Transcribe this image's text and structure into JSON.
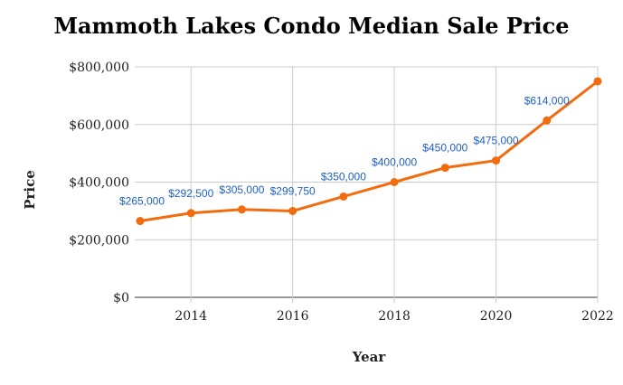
{
  "chart_data": {
    "type": "line",
    "title": "Mammoth Lakes Condo Median Sale Price",
    "xlabel": "Year",
    "ylabel": "Price",
    "x": [
      2013,
      2014,
      2015,
      2016,
      2017,
      2018,
      2019,
      2020,
      2021,
      2022
    ],
    "series": [
      {
        "values": [
          265000,
          292500,
          305000,
          299750,
          350000,
          400000,
          450000,
          475000,
          614000,
          750000
        ],
        "labels": [
          "$265,000",
          "$292,500",
          "$305,000",
          "$299,750",
          "$350,000",
          "$400,000",
          "$450,000",
          "$475,000",
          "$614,000",
          ""
        ],
        "color": "#f26b0f"
      }
    ],
    "xlim": [
      2013,
      2022
    ],
    "ylim": [
      0,
      800000
    ],
    "xticks": [
      2014,
      2016,
      2018,
      2020,
      2022
    ],
    "xtick_labels": [
      "2014",
      "2016",
      "2018",
      "2020",
      "2022"
    ],
    "yticks": [
      0,
      200000,
      400000,
      600000,
      800000
    ],
    "ytick_labels": [
      "$0",
      "$200,000",
      "$400,000",
      "$600,000",
      "$800,000"
    ],
    "grid": true,
    "legend": "none"
  }
}
